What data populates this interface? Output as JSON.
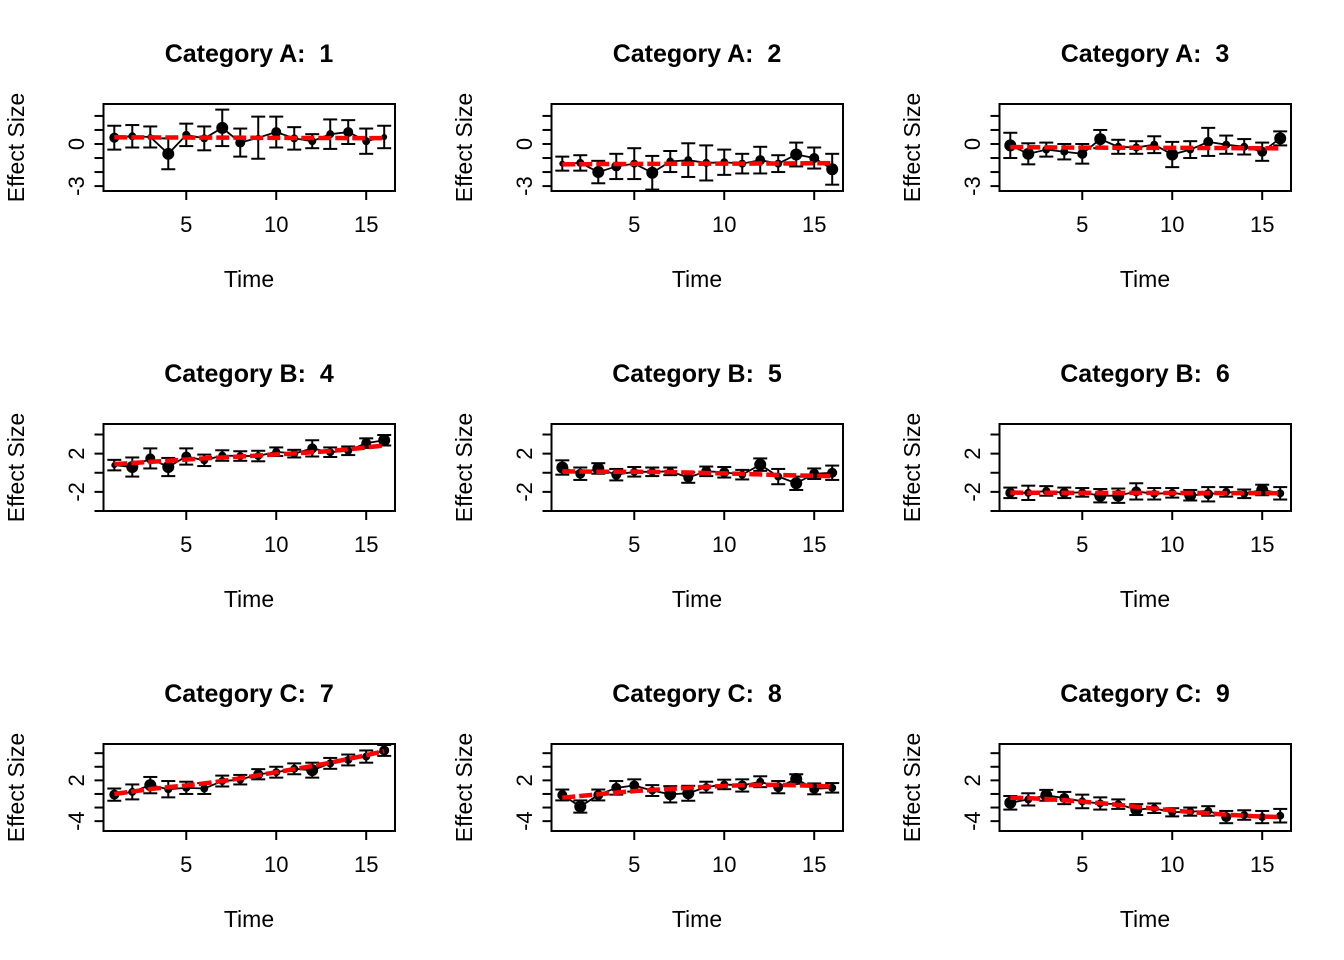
{
  "chart_data": {
    "type": "scatter",
    "layout": "3x3 grid of error-bar scatter subplots with red trend lines",
    "xlabel": "Time",
    "ylabel": "Effect Size",
    "background": "#ffffff",
    "point_color": "#000000",
    "trend_color": "#ff0000",
    "x": [
      1,
      2,
      3,
      4,
      5,
      6,
      7,
      8,
      9,
      10,
      11,
      12,
      13,
      14,
      15,
      16
    ],
    "xlim": [
      0.4,
      16.6
    ],
    "x_ticks": [
      5,
      10,
      15
    ],
    "rows": [
      {
        "ylim": [
          -3.35,
          2.85
        ],
        "yticks": [
          2,
          1,
          0,
          -1,
          -2,
          -3
        ],
        "ytick_labels": [
          "",
          "",
          "0",
          "",
          "",
          "-3"
        ]
      },
      {
        "ylim": [
          -4.0,
          5.1
        ],
        "yticks": [
          4,
          2,
          0,
          -2,
          -4
        ],
        "ytick_labels": [
          "",
          "2",
          "",
          "-2",
          ""
        ]
      },
      {
        "ylim": [
          -5.45,
          7.35
        ],
        "yticks": [
          6,
          4,
          2,
          0,
          -2,
          -4
        ],
        "ytick_labels": [
          "",
          "",
          "2",
          "",
          "",
          "-4"
        ]
      }
    ],
    "panels": [
      {
        "title": "Category A:  1",
        "row": 0,
        "y": [
          0.45,
          0.55,
          0.5,
          -0.7,
          0.65,
          0.4,
          1.15,
          0.1,
          0.45,
          0.85,
          0.4,
          0.2,
          0.7,
          0.85,
          0.2,
          0.5
        ],
        "se": [
          0.85,
          0.8,
          0.75,
          1.1,
          0.8,
          0.85,
          1.3,
          1.0,
          1.5,
          1.1,
          0.8,
          0.5,
          1.05,
          0.85,
          0.9,
          0.8
        ],
        "point_sizes": [
          5,
          4,
          3,
          6,
          4,
          4,
          6,
          5,
          3,
          5,
          4,
          4,
          4,
          5,
          4,
          3
        ],
        "trend": [
          0.48,
          0.47,
          0.47,
          0.46,
          0.46,
          0.45,
          0.45,
          0.45,
          0.44,
          0.44,
          0.43,
          0.43,
          0.43,
          0.42,
          0.42,
          0.42
        ]
      },
      {
        "title": "Category A:  2",
        "row": 0,
        "y": [
          -1.4,
          -1.35,
          -2.0,
          -1.6,
          -1.4,
          -2.05,
          -1.25,
          -1.15,
          -1.35,
          -1.3,
          -1.4,
          -1.15,
          -1.4,
          -0.75,
          -1.0,
          -1.8
        ],
        "se": [
          0.5,
          0.55,
          0.8,
          0.9,
          1.1,
          1.2,
          0.75,
          1.2,
          1.25,
          0.9,
          0.7,
          0.95,
          0.6,
          0.85,
          0.75,
          1.1
        ],
        "point_sizes": [
          3,
          4,
          6,
          5,
          4,
          6,
          4,
          4,
          4,
          4,
          4,
          5,
          4,
          6,
          5,
          6
        ],
        "trend": [
          -1.45,
          -1.44,
          -1.43,
          -1.43,
          -1.42,
          -1.42,
          -1.41,
          -1.41,
          -1.4,
          -1.4,
          -1.4,
          -1.39,
          -1.39,
          -1.38,
          -1.37,
          -1.36
        ]
      },
      {
        "title": "Category A:  3",
        "row": 0,
        "y": [
          -0.1,
          -0.7,
          -0.4,
          -0.55,
          -0.7,
          0.35,
          -0.2,
          -0.25,
          -0.05,
          -0.75,
          -0.4,
          0.15,
          -0.05,
          -0.2,
          -0.55,
          0.4
        ],
        "se": [
          0.9,
          0.75,
          0.5,
          0.55,
          0.7,
          0.65,
          0.5,
          0.45,
          0.6,
          0.9,
          0.6,
          1.0,
          0.65,
          0.55,
          0.65,
          0.5
        ],
        "point_sizes": [
          6,
          6,
          4,
          4,
          5,
          6,
          4,
          4,
          4,
          6,
          4,
          5,
          4,
          4,
          5,
          6
        ],
        "trend": [
          -0.22,
          -0.23,
          -0.24,
          -0.25,
          -0.26,
          -0.26,
          -0.27,
          -0.27,
          -0.28,
          -0.28,
          -0.28,
          -0.29,
          -0.29,
          -0.3,
          -0.3,
          -0.31
        ]
      },
      {
        "title": "Category B:  4",
        "row": 1,
        "y": [
          0.8,
          0.6,
          1.5,
          0.6,
          1.7,
          1.3,
          1.8,
          1.75,
          1.75,
          2.2,
          2.0,
          2.55,
          2.15,
          2.3,
          3.1,
          3.4
        ],
        "se": [
          0.55,
          1.0,
          1.05,
          0.95,
          0.85,
          0.6,
          0.55,
          0.5,
          0.55,
          0.45,
          0.4,
          0.85,
          0.5,
          0.45,
          0.5,
          0.55
        ],
        "point_sizes": [
          3,
          6,
          5,
          6,
          5,
          4,
          4,
          4,
          4,
          4,
          4,
          5,
          4,
          4,
          5,
          6
        ],
        "trend": [
          0.9,
          1.02,
          1.14,
          1.26,
          1.38,
          1.5,
          1.6,
          1.7,
          1.8,
          1.92,
          2.02,
          2.14,
          2.28,
          2.45,
          2.65,
          2.85
        ]
      },
      {
        "title": "Category B:  5",
        "row": 1,
        "y": [
          0.55,
          -0.1,
          0.45,
          -0.2,
          0.1,
          0.1,
          0.15,
          -0.5,
          0.15,
          0.05,
          -0.2,
          0.85,
          -0.4,
          -1.1,
          -0.1,
          0.0
        ],
        "se": [
          0.75,
          0.65,
          0.55,
          0.6,
          0.5,
          0.45,
          0.4,
          0.55,
          0.5,
          0.55,
          0.5,
          0.65,
          0.8,
          0.7,
          0.55,
          0.75
        ],
        "point_sizes": [
          6,
          5,
          6,
          5,
          4,
          4,
          4,
          5,
          5,
          5,
          4,
          6,
          4,
          6,
          5,
          5
        ],
        "trend": [
          0.15,
          0.13,
          0.11,
          0.1,
          0.1,
          0.09,
          0.07,
          0.03,
          -0.02,
          -0.07,
          -0.12,
          -0.17,
          -0.23,
          -0.28,
          -0.32,
          -0.35
        ]
      },
      {
        "title": "Category B:  6",
        "row": 1,
        "y": [
          -2.1,
          -2.1,
          -1.9,
          -2.1,
          -2.05,
          -2.4,
          -2.4,
          -1.95,
          -2.2,
          -2.1,
          -2.35,
          -2.25,
          -2.0,
          -2.2,
          -1.8,
          -2.15
        ],
        "se": [
          0.55,
          0.75,
          0.5,
          0.55,
          0.45,
          0.7,
          0.75,
          0.85,
          0.6,
          0.5,
          0.55,
          0.75,
          0.5,
          0.45,
          0.55,
          0.65
        ],
        "point_sizes": [
          5,
          4,
          4,
          5,
          4,
          6,
          6,
          5,
          4,
          4,
          6,
          5,
          4,
          4,
          6,
          4
        ],
        "trend": [
          -2.08,
          -2.09,
          -2.09,
          -2.1,
          -2.1,
          -2.1,
          -2.11,
          -2.11,
          -2.11,
          -2.12,
          -2.12,
          -2.12,
          -2.13,
          -2.13,
          -2.13,
          -2.14
        ]
      },
      {
        "title": "Category C:  7",
        "row": 2,
        "y": [
          -0.1,
          0.3,
          1.3,
          0.7,
          0.9,
          0.8,
          1.9,
          2.1,
          2.9,
          3.2,
          3.7,
          3.5,
          4.5,
          5.0,
          5.5,
          6.4
        ],
        "se": [
          0.9,
          1.1,
          1.2,
          1.2,
          0.9,
          0.8,
          0.8,
          0.7,
          0.75,
          0.8,
          0.8,
          1.1,
          0.8,
          0.8,
          0.9,
          0.8
        ],
        "point_sizes": [
          5,
          4,
          6,
          4,
          4,
          4,
          4,
          4,
          5,
          4,
          4,
          6,
          4,
          4,
          4,
          5
        ],
        "trend": [
          0.0,
          0.35,
          0.72,
          1.0,
          1.25,
          1.55,
          1.9,
          2.3,
          2.75,
          3.2,
          3.65,
          4.1,
          4.6,
          5.15,
          5.7,
          6.3
        ]
      },
      {
        "title": "Category C:  8",
        "row": 2,
        "y": [
          -0.15,
          -1.85,
          -0.15,
          0.9,
          1.25,
          0.5,
          -0.05,
          0.1,
          1.0,
          1.4,
          1.25,
          1.8,
          1.0,
          2.2,
          0.75,
          0.9
        ],
        "se": [
          0.8,
          0.9,
          0.8,
          1.0,
          0.9,
          0.8,
          1.2,
          1.1,
          0.8,
          0.7,
          0.9,
          0.8,
          0.9,
          0.7,
          0.8,
          0.7
        ],
        "point_sizes": [
          5,
          6,
          5,
          5,
          5,
          4,
          6,
          6,
          4,
          4,
          5,
          4,
          5,
          6,
          5,
          4
        ],
        "trend": [
          -0.55,
          -0.3,
          -0.05,
          0.2,
          0.42,
          0.6,
          0.75,
          0.9,
          1.05,
          1.18,
          1.28,
          1.33,
          1.33,
          1.28,
          1.2,
          1.1
        ]
      },
      {
        "title": "Category C:  9",
        "row": 2,
        "y": [
          -1.3,
          -0.8,
          -0.2,
          -0.6,
          -1.1,
          -1.4,
          -1.5,
          -2.3,
          -2.1,
          -2.7,
          -2.6,
          -2.5,
          -3.4,
          -3.1,
          -3.4,
          -3.2
        ],
        "se": [
          1.0,
          0.9,
          0.8,
          0.9,
          1.0,
          0.9,
          0.7,
          0.8,
          0.7,
          0.6,
          0.6,
          0.7,
          0.9,
          0.7,
          0.9,
          1.0
        ],
        "point_sizes": [
          6,
          4,
          6,
          5,
          4,
          4,
          4,
          6,
          4,
          4,
          4,
          4,
          5,
          4,
          4,
          4
        ],
        "trend": [
          -0.55,
          -0.62,
          -0.75,
          -0.92,
          -1.12,
          -1.35,
          -1.6,
          -1.88,
          -2.15,
          -2.42,
          -2.65,
          -2.85,
          -3.05,
          -3.2,
          -3.32,
          -3.4
        ]
      }
    ]
  }
}
